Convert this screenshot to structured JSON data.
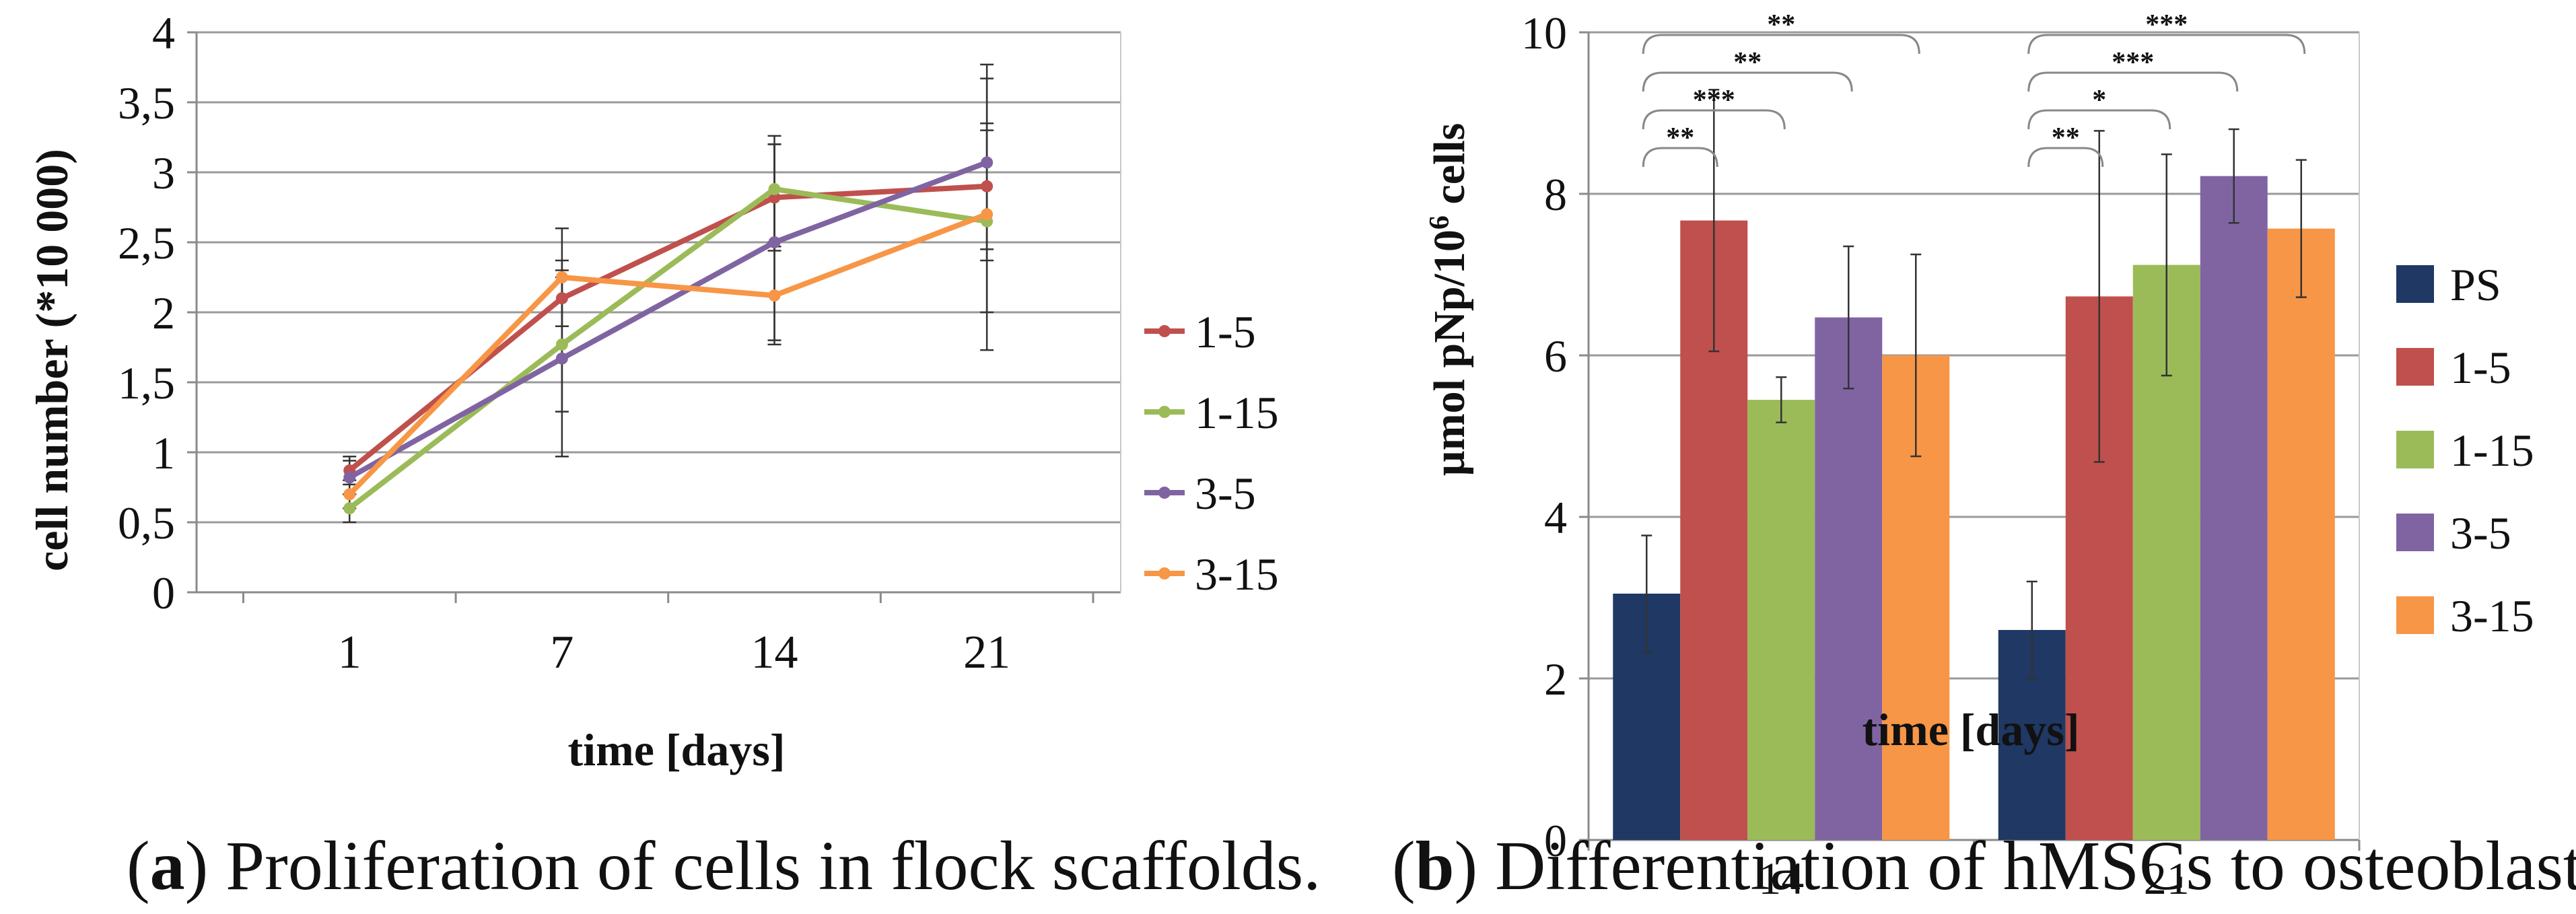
{
  "chart_data": [
    {
      "id": "a",
      "type": "line",
      "xlabel": "time [days]",
      "ylabel": "cell number (*10 000)",
      "categories": [
        "1",
        "7",
        "14",
        "21"
      ],
      "ylim": [
        0,
        4
      ],
      "yticks": [
        "0",
        "0,5",
        "1",
        "1,5",
        "2",
        "2,5",
        "3",
        "3,5",
        "4"
      ],
      "grid": true,
      "legend": "right",
      "series": [
        {
          "name": "1-5",
          "color": "#C0504D",
          "values": [
            0.87,
            2.1,
            2.82,
            2.9
          ],
          "err": [
            0.1,
            0.2,
            0.38,
            0.45
          ]
        },
        {
          "name": "1-15",
          "color": "#9BBB59",
          "values": [
            0.6,
            1.77,
            2.88,
            2.65
          ],
          "err": [
            0.1,
            0.48,
            0.38,
            0.65
          ]
        },
        {
          "name": "3-5",
          "color": "#8064A2",
          "values": [
            0.82,
            1.67,
            2.5,
            3.07
          ],
          "err": [
            0.12,
            0.7,
            0.7,
            0.7
          ]
        },
        {
          "name": "3-15",
          "color": "#F79646",
          "values": [
            0.7,
            2.25,
            2.12,
            2.7
          ],
          "err": [
            0.1,
            0.35,
            0.35,
            0.97
          ]
        }
      ]
    },
    {
      "id": "b",
      "type": "bar",
      "xlabel": "time [days]",
      "ylabel_main": "µmol pNp/10",
      "ylabel_sup": "6",
      "ylabel_tail": " cells",
      "categories": [
        "14",
        "21"
      ],
      "ylim": [
        0,
        10
      ],
      "yticks": [
        "0",
        "2",
        "4",
        "6",
        "8",
        "10"
      ],
      "grid": true,
      "legend": "right",
      "series": [
        {
          "name": "PS",
          "color": "#1F3864",
          "values": [
            3.05,
            2.6
          ],
          "err": [
            0.72,
            0.6
          ]
        },
        {
          "name": "1-5",
          "color": "#C0504D",
          "values": [
            7.67,
            6.73
          ],
          "err": [
            1.62,
            2.05
          ]
        },
        {
          "name": "1-15",
          "color": "#9BBB59",
          "values": [
            5.45,
            7.12
          ],
          "err": [
            0.28,
            1.37
          ]
        },
        {
          "name": "3-5",
          "color": "#8064A2",
          "values": [
            6.47,
            8.22
          ],
          "err": [
            0.88,
            0.58
          ]
        },
        {
          "name": "3-15",
          "color": "#F79646",
          "values": [
            6.0,
            7.57
          ],
          "err": [
            1.25,
            0.85
          ]
        }
      ],
      "significance": [
        {
          "group": 0,
          "from": 0,
          "to": 1,
          "level": 0,
          "label": "**"
        },
        {
          "group": 0,
          "from": 0,
          "to": 2,
          "level": 1,
          "label": "***"
        },
        {
          "group": 0,
          "from": 0,
          "to": 3,
          "level": 2,
          "label": "**"
        },
        {
          "group": 0,
          "from": 0,
          "to": 4,
          "level": 3,
          "label": "**"
        },
        {
          "group": 1,
          "from": 0,
          "to": 1,
          "level": 0,
          "label": "**"
        },
        {
          "group": 1,
          "from": 0,
          "to": 2,
          "level": 1,
          "label": "*"
        },
        {
          "group": 1,
          "from": 0,
          "to": 3,
          "level": 2,
          "label": "***"
        },
        {
          "group": 1,
          "from": 0,
          "to": 4,
          "level": 3,
          "label": "***"
        }
      ]
    }
  ],
  "captions": {
    "a": {
      "letter": "a",
      "text": ") Proliferation of cells in flock scaffolds."
    },
    "b": {
      "letter": "b",
      "text": ") Differentiation of hMSCs to osteoblasts."
    }
  }
}
